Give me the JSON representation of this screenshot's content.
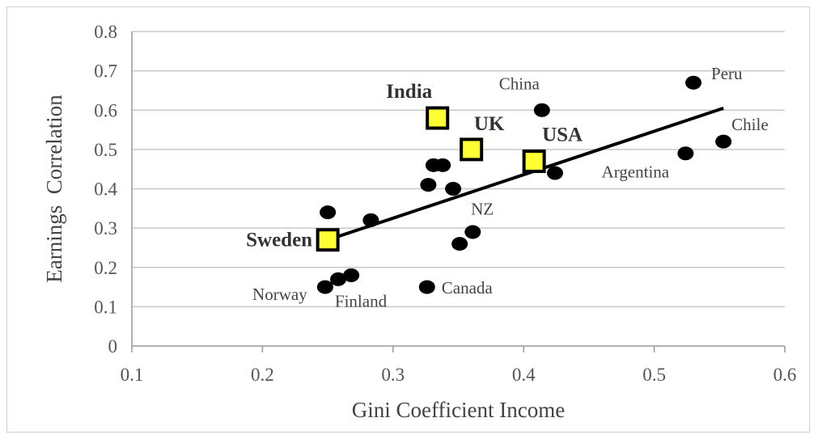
{
  "chart_data": {
    "type": "scatter",
    "xlabel": "Gini Coefficient Income",
    "ylabel": "Earnings  Correlation",
    "xlim": [
      0.1,
      0.6
    ],
    "ylim": [
      0,
      0.8
    ],
    "x_ticks": [
      "0.1",
      "0.2",
      "0.3",
      "0.4",
      "0.5",
      "0.6"
    ],
    "y_ticks": [
      "0",
      "0.1",
      "0.2",
      "0.3",
      "0.4",
      "0.5",
      "0.6",
      "0.7",
      "0.8"
    ],
    "grid": "horizontal",
    "points": [
      {
        "x": 0.53,
        "y": 0.67,
        "label": "Peru"
      },
      {
        "x": 0.414,
        "y": 0.6,
        "label": "China"
      },
      {
        "x": 0.553,
        "y": 0.52,
        "label": "Chile"
      },
      {
        "x": 0.524,
        "y": 0.49,
        "label": "Argentina"
      },
      {
        "x": 0.424,
        "y": 0.44,
        "label": ""
      },
      {
        "x": 0.331,
        "y": 0.46,
        "label": ""
      },
      {
        "x": 0.338,
        "y": 0.46,
        "label": ""
      },
      {
        "x": 0.327,
        "y": 0.41,
        "label": ""
      },
      {
        "x": 0.346,
        "y": 0.4,
        "label": ""
      },
      {
        "x": 0.25,
        "y": 0.34,
        "label": ""
      },
      {
        "x": 0.283,
        "y": 0.32,
        "label": ""
      },
      {
        "x": 0.361,
        "y": 0.29,
        "label": ""
      },
      {
        "x": 0.351,
        "y": 0.26,
        "label": "NZ"
      },
      {
        "x": 0.258,
        "y": 0.17,
        "label": "Finland"
      },
      {
        "x": 0.268,
        "y": 0.18,
        "label": ""
      },
      {
        "x": 0.248,
        "y": 0.15,
        "label": "Norway"
      },
      {
        "x": 0.326,
        "y": 0.15,
        "label": "Canada"
      }
    ],
    "highlighted": [
      {
        "x": 0.334,
        "y": 0.58,
        "label": "India"
      },
      {
        "x": 0.36,
        "y": 0.5,
        "label": "UK"
      },
      {
        "x": 0.408,
        "y": 0.47,
        "label": "USA"
      },
      {
        "x": 0.25,
        "y": 0.27,
        "label": "Sweden"
      }
    ],
    "trendline": {
      "x": [
        0.25,
        0.553
      ],
      "y": [
        0.27,
        0.605
      ]
    },
    "colors": {
      "points": "#000000",
      "highlight_fill": "#ffff33",
      "highlight_stroke": "#000000",
      "grid": "#c8c8c8"
    }
  }
}
